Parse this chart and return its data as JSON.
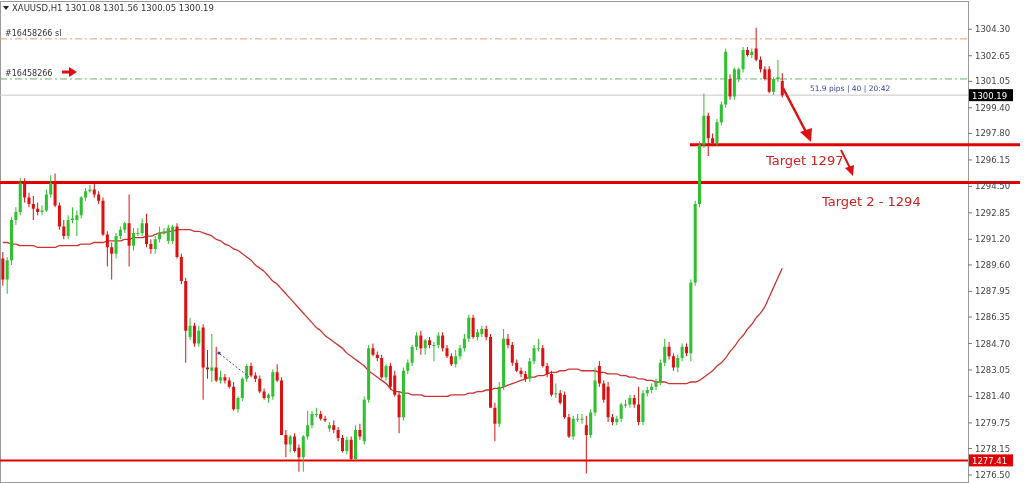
{
  "chart_data": {
    "type": "candlestick",
    "title": "XAUUSD,H1  1301.08 1301.56 1300.05 1300.19",
    "categories": [
      null,
      null,
      null,
      null,
      null,
      null,
      null,
      null,
      null,
      null,
      null,
      null,
      null,
      null,
      null,
      null,
      null,
      null,
      null,
      null,
      null,
      null,
      null,
      null,
      null,
      null,
      null,
      null,
      null,
      null,
      null,
      null,
      null,
      null,
      null,
      null,
      null,
      null,
      null,
      null,
      null,
      null,
      null,
      null,
      null,
      null,
      null,
      null,
      null,
      null,
      null,
      null,
      null,
      null,
      null,
      null,
      null,
      null,
      null,
      null,
      null,
      null,
      null,
      null,
      null,
      null,
      null,
      null,
      null,
      null,
      null,
      null,
      null,
      null,
      null,
      null,
      null,
      null,
      null,
      null,
      null,
      null,
      null,
      null,
      null,
      null,
      null,
      null,
      null,
      null,
      null,
      null,
      null,
      null,
      null,
      null,
      null,
      null,
      null,
      null,
      null,
      null,
      null,
      null,
      null,
      null,
      null,
      null,
      null,
      null,
      null,
      null,
      null,
      null,
      null,
      null,
      null,
      null,
      null,
      null,
      null,
      null,
      null,
      null,
      null,
      null,
      null,
      null,
      null,
      null,
      null,
      null,
      null,
      null,
      null,
      null,
      null,
      null,
      null,
      null,
      null,
      null,
      null,
      null,
      null,
      null,
      null,
      null,
      null,
      null,
      null,
      null,
      null,
      null,
      null,
      null,
      null,
      null,
      null,
      null,
      null,
      null,
      null,
      null,
      null,
      null,
      null,
      null,
      null,
      null,
      null,
      null,
      null,
      null,
      null,
      null,
      null,
      null,
      null,
      null,
      null,
      null,
      null,
      null,
      null,
      null,
      null,
      null,
      null,
      null,
      null,
      null,
      null,
      null,
      null,
      null,
      null,
      null,
      null,
      null,
      null,
      null,
      null,
      null,
      null,
      null,
      null,
      null,
      null,
      null,
      null,
      null,
      null,
      null,
      null,
      null,
      null,
      null,
      null,
      null,
      null,
      null
    ],
    "ohlc": [
      [
        1290.0,
        1290.4,
        1288.3,
        1288.7
      ],
      [
        1288.7,
        1290.1,
        1287.8,
        1289.9
      ],
      [
        1289.9,
        1292.6,
        1289.6,
        1292.4
      ],
      [
        1292.4,
        1293.2,
        1292.1,
        1292.9
      ],
      [
        1292.9,
        1295.0,
        1292.7,
        1294.7
      ],
      [
        1294.7,
        1295.0,
        1293.5,
        1293.8
      ],
      [
        1293.8,
        1294.1,
        1293.2,
        1293.4
      ],
      [
        1293.4,
        1293.9,
        1292.4,
        1293.1
      ],
      [
        1293.1,
        1293.5,
        1292.7,
        1292.9
      ],
      [
        1292.9,
        1293.3,
        1292.7,
        1293.0
      ],
      [
        1293.0,
        1294.3,
        1292.9,
        1294.0
      ],
      [
        1294.0,
        1295.2,
        1293.8,
        1294.7
      ],
      [
        1294.7,
        1295.3,
        1293.2,
        1293.3
      ],
      [
        1293.3,
        1293.5,
        1291.8,
        1292.0
      ],
      [
        1292.0,
        1292.4,
        1291.2,
        1291.4
      ],
      [
        1291.4,
        1292.7,
        1291.2,
        1292.4
      ],
      [
        1292.4,
        1293.2,
        1292.2,
        1292.5
      ],
      [
        1292.4,
        1293.0,
        1291.4,
        1292.7
      ],
      [
        1292.7,
        1293.9,
        1292.5,
        1293.8
      ],
      [
        1293.8,
        1294.4,
        1293.6,
        1294.2
      ],
      [
        1294.2,
        1294.6,
        1294.1,
        1294.3
      ],
      [
        1294.3,
        1294.7,
        1293.8,
        1294.0
      ],
      [
        1294.0,
        1294.2,
        1293.4,
        1293.6
      ],
      [
        1293.6,
        1293.8,
        1291.4,
        1291.5
      ],
      [
        1291.5,
        1291.7,
        1289.5,
        1290.7
      ],
      [
        1290.7,
        1291.0,
        1288.7,
        1290.3
      ],
      [
        1290.3,
        1291.6,
        1290.0,
        1291.4
      ],
      [
        1291.4,
        1292.0,
        1291.2,
        1291.8
      ],
      [
        1291.8,
        1292.3,
        1291.6,
        1292.2
      ],
      [
        1292.2,
        1294.0,
        1289.5,
        1290.8
      ],
      [
        1290.8,
        1291.9,
        1290.5,
        1291.6
      ],
      [
        1291.6,
        1291.9,
        1291.4,
        1291.6
      ],
      [
        1291.6,
        1292.5,
        1291.4,
        1292.2
      ],
      [
        1292.2,
        1292.8,
        1290.7,
        1290.9
      ],
      [
        1290.9,
        1291.2,
        1290.3,
        1290.6
      ],
      [
        1290.6,
        1291.4,
        1290.3,
        1291.2
      ],
      [
        1291.2,
        1292.0,
        1291.0,
        1291.6
      ],
      [
        1291.6,
        1291.9,
        1291.5,
        1291.7
      ],
      [
        1291.1,
        1292.1,
        1290.9,
        1291.9
      ],
      [
        1291.1,
        1292.1,
        1290.9,
        1292.0
      ],
      [
        1292.0,
        1292.2,
        1290.0,
        1290.1
      ],
      [
        1290.1,
        1290.3,
        1288.4,
        1288.6
      ],
      [
        1288.6,
        1288.8,
        1283.5,
        1285.5
      ],
      [
        1285.1,
        1286.3,
        1284.9,
        1285.8
      ],
      [
        1285.8,
        1286.0,
        1284.5,
        1284.7
      ],
      [
        1284.7,
        1285.8,
        1284.5,
        1285.5
      ],
      [
        1285.7,
        1285.9,
        1281.2,
        1283.2
      ],
      [
        1283.2,
        1284.3,
        1282.5,
        1283.1
      ],
      [
        1283.0,
        1285.3,
        1282.3,
        1283.2
      ],
      [
        1283.2,
        1284.5,
        1282.3,
        1282.4
      ],
      [
        1282.4,
        1283.0,
        1282.2,
        1282.6
      ],
      [
        1282.6,
        1282.8,
        1282.2,
        1282.4
      ],
      [
        1282.4,
        1282.6,
        1281.9,
        1282.0
      ],
      [
        1282.0,
        1282.3,
        1280.5,
        1280.6
      ],
      [
        1280.6,
        1281.4,
        1280.4,
        1281.3
      ],
      [
        1281.3,
        1282.6,
        1281.1,
        1282.5
      ],
      [
        1282.5,
        1283.4,
        1282.3,
        1283.3
      ],
      [
        1283.3,
        1283.5,
        1282.6,
        1282.7
      ],
      [
        1282.7,
        1282.9,
        1282.3,
        1282.5
      ],
      [
        1282.5,
        1282.7,
        1281.6,
        1281.7
      ],
      [
        1281.7,
        1281.9,
        1281.2,
        1281.3
      ],
      [
        1281.3,
        1281.6,
        1281.0,
        1281.5
      ],
      [
        1281.4,
        1283.1,
        1281.2,
        1282.9
      ],
      [
        1282.9,
        1283.4,
        1282.3,
        1282.4
      ],
      [
        1282.4,
        1282.6,
        1279.0,
        1279.0
      ],
      [
        1279.0,
        1279.3,
        1277.6,
        1278.4
      ],
      [
        1278.4,
        1279.0,
        1277.9,
        1278.9
      ],
      [
        1278.9,
        1279.1,
        1277.9,
        1278.0
      ],
      [
        1278.2,
        1278.4,
        1276.7,
        1277.6
      ],
      [
        1277.6,
        1279.0,
        1276.7,
        1278.9
      ],
      [
        1278.9,
        1280.5,
        1278.7,
        1279.6
      ],
      [
        1279.6,
        1280.5,
        1279.4,
        1280.3
      ],
      [
        1280.3,
        1280.7,
        1280.1,
        1280.3
      ],
      [
        1280.3,
        1280.5,
        1279.9,
        1280.0
      ],
      [
        1280.0,
        1280.2,
        1279.8,
        1279.9
      ],
      [
        1279.4,
        1279.8,
        1279.2,
        1279.6
      ],
      [
        1279.6,
        1279.9,
        1279.1,
        1279.3
      ],
      [
        1279.3,
        1279.5,
        1278.6,
        1278.8
      ],
      [
        1278.8,
        1279.0,
        1277.9,
        1278.0
      ],
      [
        1278.0,
        1278.9,
        1277.8,
        1278.7
      ],
      [
        1278.7,
        1278.9,
        1277.4,
        1277.5
      ],
      [
        1277.5,
        1279.6,
        1277.4,
        1279.3
      ],
      [
        1279.3,
        1279.7,
        1278.7,
        1278.9
      ],
      [
        1278.6,
        1281.4,
        1278.4,
        1281.2
      ],
      [
        1281.2,
        1284.6,
        1281.0,
        1284.4
      ],
      [
        1284.4,
        1284.7,
        1283.9,
        1284.0
      ],
      [
        1284.0,
        1284.2,
        1283.6,
        1283.8
      ],
      [
        1283.8,
        1284.0,
        1282.5,
        1282.6
      ],
      [
        1282.6,
        1283.4,
        1282.4,
        1283.3
      ],
      [
        1283.3,
        1283.5,
        1281.8,
        1282.0
      ],
      [
        1282.7,
        1283.0,
        1281.4,
        1281.5
      ],
      [
        1281.5,
        1281.7,
        1279.1,
        1280.1
      ],
      [
        1280.1,
        1283.2,
        1279.9,
        1283.0
      ],
      [
        1283.0,
        1283.7,
        1282.8,
        1283.5
      ],
      [
        1283.5,
        1284.6,
        1283.3,
        1284.5
      ],
      [
        1284.5,
        1285.4,
        1284.3,
        1285.2
      ],
      [
        1285.2,
        1285.5,
        1284.0,
        1284.4
      ],
      [
        1284.4,
        1285.0,
        1284.0,
        1284.9
      ],
      [
        1284.9,
        1285.1,
        1284.4,
        1284.6
      ],
      [
        1284.6,
        1284.8,
        1283.6,
        1284.6
      ],
      [
        1284.6,
        1285.4,
        1284.4,
        1285.2
      ],
      [
        1285.2,
        1285.4,
        1284.2,
        1284.4
      ],
      [
        1284.4,
        1284.6,
        1283.8,
        1283.9
      ],
      [
        1283.9,
        1284.1,
        1283.3,
        1283.4
      ],
      [
        1283.4,
        1284.3,
        1283.2,
        1283.9
      ],
      [
        1283.9,
        1284.6,
        1283.7,
        1284.4
      ],
      [
        1284.4,
        1285.3,
        1284.2,
        1285.0
      ],
      [
        1285.0,
        1286.5,
        1284.8,
        1286.3
      ],
      [
        1286.3,
        1286.5,
        1285.0,
        1285.1
      ],
      [
        1285.1,
        1285.6,
        1284.9,
        1285.4
      ],
      [
        1285.3,
        1285.8,
        1285.1,
        1285.6
      ],
      [
        1285.6,
        1285.8,
        1284.9,
        1285.1
      ],
      [
        1285.1,
        1285.3,
        1280.7,
        1280.7
      ],
      [
        1280.7,
        1281.0,
        1278.6,
        1279.7
      ],
      [
        1279.7,
        1282.3,
        1279.5,
        1282.0
      ],
      [
        1282.0,
        1285.6,
        1281.8,
        1285.0
      ],
      [
        1285.0,
        1285.3,
        1284.4,
        1284.6
      ],
      [
        1284.6,
        1284.8,
        1283.3,
        1283.5
      ],
      [
        1283.5,
        1283.7,
        1282.9,
        1283.0
      ],
      [
        1283.0,
        1283.2,
        1282.6,
        1282.8
      ],
      [
        1282.8,
        1283.0,
        1282.3,
        1282.5
      ],
      [
        1282.5,
        1283.8,
        1282.3,
        1283.6
      ],
      [
        1283.6,
        1284.6,
        1283.4,
        1284.4
      ],
      [
        1284.4,
        1285.0,
        1284.2,
        1284.4
      ],
      [
        1284.4,
        1284.6,
        1283.2,
        1283.3
      ],
      [
        1283.3,
        1283.5,
        1282.6,
        1282.8
      ],
      [
        1282.8,
        1283.0,
        1281.4,
        1281.5
      ],
      [
        1281.6,
        1282.2,
        1281.3,
        1281.6
      ],
      [
        1281.6,
        1281.8,
        1280.9,
        1281.0
      ],
      [
        1281.5,
        1281.7,
        1280.0,
        1280.1
      ],
      [
        1280.1,
        1280.3,
        1278.8,
        1278.9
      ],
      [
        1278.9,
        1280.2,
        1278.7,
        1280.0
      ],
      [
        1280.0,
        1280.3,
        1279.8,
        1280.0
      ],
      [
        1280.0,
        1280.3,
        1279.7,
        1280.0
      ],
      [
        1279.6,
        1280.2,
        1276.6,
        1279.0
      ],
      [
        1279.0,
        1280.6,
        1278.8,
        1280.4
      ],
      [
        1280.4,
        1283.2,
        1280.2,
        1282.4
      ],
      [
        1283.3,
        1283.6,
        1282.0,
        1282.2
      ],
      [
        1282.2,
        1282.4,
        1281.0,
        1281.2
      ],
      [
        1282.0,
        1282.3,
        1279.8,
        1280.1
      ],
      [
        1280.1,
        1280.3,
        1279.6,
        1279.8
      ],
      [
        1279.8,
        1280.2,
        1279.6,
        1280.0
      ],
      [
        1280.0,
        1281.0,
        1279.8,
        1280.9
      ],
      [
        1280.9,
        1281.2,
        1280.7,
        1280.9
      ],
      [
        1280.9,
        1281.5,
        1280.7,
        1281.3
      ],
      [
        1281.3,
        1281.5,
        1280.7,
        1280.9
      ],
      [
        1280.9,
        1282.0,
        1279.6,
        1279.8
      ],
      [
        1279.8,
        1281.8,
        1279.6,
        1281.6
      ],
      [
        1281.6,
        1282.0,
        1281.4,
        1281.8
      ],
      [
        1281.8,
        1282.2,
        1281.6,
        1282.0
      ],
      [
        1282.0,
        1282.5,
        1281.8,
        1282.3
      ],
      [
        1282.3,
        1283.7,
        1282.1,
        1283.5
      ],
      [
        1283.5,
        1285.0,
        1283.3,
        1284.5
      ],
      [
        1284.5,
        1284.8,
        1283.7,
        1283.9
      ],
      [
        1283.9,
        1284.1,
        1283.0,
        1283.2
      ],
      [
        1283.2,
        1284.0,
        1282.9,
        1283.8
      ],
      [
        1283.8,
        1284.7,
        1283.6,
        1284.5
      ],
      [
        1284.5,
        1284.7,
        1283.9,
        1284.1
      ],
      [
        1284.1,
        1288.7,
        1283.6,
        1288.5
      ],
      [
        1288.5,
        1293.6,
        1288.3,
        1293.4
      ],
      [
        1293.4,
        1297.3,
        1293.2,
        1297.1
      ],
      [
        1297.1,
        1300.3,
        1296.9,
        1298.9
      ],
      [
        1298.9,
        1299.1,
        1296.4,
        1297.5
      ],
      [
        1297.5,
        1297.8,
        1297.0,
        1297.2
      ],
      [
        1297.2,
        1298.7,
        1297.0,
        1298.5
      ],
      [
        1298.5,
        1299.8,
        1298.3,
        1299.6
      ],
      [
        1299.6,
        1303.1,
        1299.4,
        1302.9
      ],
      [
        1301.2,
        1301.5,
        1299.9,
        1300.1
      ],
      [
        1300.1,
        1301.9,
        1299.9,
        1301.8
      ],
      [
        1301.2,
        1301.9,
        1301.0,
        1301.8
      ],
      [
        1301.8,
        1303.2,
        1301.6,
        1303.0
      ],
      [
        1303.0,
        1303.2,
        1302.6,
        1302.7
      ],
      [
        1302.7,
        1303.1,
        1302.5,
        1302.9
      ],
      [
        1303.1,
        1304.4,
        1302.3,
        1302.4
      ],
      [
        1302.4,
        1302.6,
        1301.6,
        1301.8
      ],
      [
        1301.8,
        1302.0,
        1301.1,
        1301.2
      ],
      [
        1301.8,
        1302.0,
        1300.3,
        1300.4
      ],
      [
        1300.4,
        1301.3,
        1300.2,
        1301.2
      ],
      [
        1301.2,
        1302.4,
        1301.0,
        1301.3
      ],
      [
        1301.08,
        1301.56,
        1300.05,
        1300.19
      ],
      null,
      null,
      null,
      null,
      null,
      null,
      null,
      null,
      null,
      null,
      null,
      null,
      null,
      null,
      null,
      null,
      null,
      null,
      null,
      null,
      null,
      null,
      null,
      null,
      null,
      null,
      null,
      null,
      null,
      null,
      null,
      null,
      null,
      null,
      null,
      null,
      null,
      null,
      null,
      null,
      null,
      null
    ],
    "series": [
      {
        "type": "line",
        "color": "#cc3333",
        "values": [
          1291.0,
          1291.0,
          1290.9,
          1290.9,
          1290.8,
          1290.8,
          1290.8,
          1290.8,
          1290.7,
          1290.7,
          1290.7,
          1290.7,
          1290.7,
          1290.8,
          1290.8,
          1290.8,
          1290.8,
          1290.8,
          1290.9,
          1290.9,
          1290.9,
          1291.0,
          1291.0,
          1291.0,
          1291.1,
          1291.1,
          1291.1,
          1291.1,
          1291.2,
          1291.2,
          1291.3,
          1291.3,
          1291.3,
          1291.4,
          1291.4,
          1291.5,
          1291.6,
          1291.6,
          1291.7,
          1291.7,
          1291.8,
          1291.8,
          1291.8,
          1291.8,
          1291.7,
          1291.7,
          1291.6,
          1291.5,
          1291.4,
          1291.2,
          1291.1,
          1290.9,
          1290.8,
          1290.6,
          1290.5,
          1290.3,
          1290.1,
          1289.9,
          1289.6,
          1289.4,
          1289.2,
          1288.9,
          1288.6,
          1288.4,
          1288.1,
          1287.8,
          1287.5,
          1287.2,
          1286.9,
          1286.6,
          1286.3,
          1286.0,
          1285.7,
          1285.5,
          1285.2,
          1285.0,
          1284.8,
          1284.6,
          1284.4,
          1284.1,
          1283.9,
          1283.7,
          1283.5,
          1283.3,
          1283.0,
          1282.8,
          1282.6,
          1282.4,
          1282.2,
          1281.9,
          1281.7,
          1281.7,
          1281.6,
          1281.6,
          1281.5,
          1281.5,
          1281.5,
          1281.4,
          1281.4,
          1281.4,
          1281.4,
          1281.4,
          1281.4,
          1281.5,
          1281.5,
          1281.5,
          1281.5,
          1281.6,
          1281.6,
          1281.7,
          1281.7,
          1281.8,
          1281.8,
          1281.9,
          1281.9,
          1282.0,
          1282.1,
          1282.2,
          1282.3,
          1282.4,
          1282.5,
          1282.6,
          1282.6,
          1282.7,
          1282.7,
          1282.8,
          1282.9,
          1282.9,
          1283.0,
          1283.0,
          1283.1,
          1283.1,
          1283.1,
          1283.0,
          1283.0,
          1283.0,
          1283.0,
          1282.9,
          1282.9,
          1282.8,
          1282.8,
          1282.8,
          1282.7,
          1282.7,
          1282.6,
          1282.6,
          1282.5,
          1282.5,
          1282.4,
          1282.4,
          1282.3,
          1282.3,
          1282.3,
          1282.2,
          1282.2,
          1282.2,
          1282.2,
          1282.2,
          1282.3,
          1282.3,
          1282.4,
          1282.6,
          1282.8,
          1283.0,
          1283.3,
          1283.5,
          1283.8,
          1284.2,
          1284.5,
          1284.9,
          1285.2,
          1285.6,
          1285.9,
          1286.3,
          1286.6,
          1287.0,
          1287.6,
          1288.2,
          1288.8,
          1289.4,
          null,
          null,
          null,
          null,
          null,
          null,
          null,
          null,
          null,
          null,
          null,
          null,
          null,
          null,
          null,
          null,
          null,
          null,
          null,
          null,
          null,
          null,
          null,
          null,
          null,
          null,
          null,
          null,
          null,
          null,
          null,
          null,
          null,
          null,
          null,
          null,
          null,
          null,
          null,
          null,
          null,
          null
        ]
      }
    ],
    "ylim": [
      1276.0,
      1306.0
    ],
    "yticks": [
      {
        "value": 1304.3,
        "label": "1304.30"
      },
      {
        "value": 1302.65,
        "label": "1302.65"
      },
      {
        "value": 1301.05,
        "label": "1301.05"
      },
      {
        "value": 1299.4,
        "label": "1299.40"
      },
      {
        "value": 1297.8,
        "label": "1297.80"
      },
      {
        "value": 1296.15,
        "label": "1296.15"
      },
      {
        "value": 1294.5,
        "label": "1294.50"
      },
      {
        "value": 1292.85,
        "label": "1292.85"
      },
      {
        "value": 1291.2,
        "label": "1291.20"
      },
      {
        "value": 1289.6,
        "label": "1289.60"
      },
      {
        "value": 1287.95,
        "label": "1287.95"
      },
      {
        "value": 1286.35,
        "label": "1286.35"
      },
      {
        "value": 1284.7,
        "label": "1284.70"
      },
      {
        "value": 1283.05,
        "label": "1283.05"
      },
      {
        "value": 1281.4,
        "label": "1281.40"
      },
      {
        "value": 1279.75,
        "label": "1279.75"
      },
      {
        "value": 1278.15,
        "label": "1278.15"
      },
      {
        "value": 1276.5,
        "label": "1276.50"
      }
    ],
    "ref_lines": [
      {
        "axis": "y",
        "value": 1303.7,
        "color": "#e8a070",
        "line_style": "dashed"
      },
      {
        "axis": "y",
        "value": 1301.2,
        "color": "#6fb06f",
        "line_style": "dashed"
      },
      {
        "axis": "y",
        "value": 1300.19,
        "label": "1300.19",
        "color": "#c8c8c8"
      },
      {
        "axis": "y",
        "value": 1297.1,
        "label": "Target 1297",
        "color": "#e00000"
      },
      {
        "axis": "y",
        "value": 1294.75,
        "label": "Target 2 - 1294",
        "color": "#e00000"
      },
      {
        "axis": "y",
        "value": 1277.41,
        "label": "1277.41",
        "color": "#e00000"
      }
    ],
    "annotations": [
      {
        "text": "#16458266 sl",
        "y": 1303.7
      },
      {
        "text": "#16458266",
        "y": 1301.2
      },
      {
        "text": "51.9 pips | 40 | 20:42",
        "y": 1300.19
      }
    ]
  }
}
